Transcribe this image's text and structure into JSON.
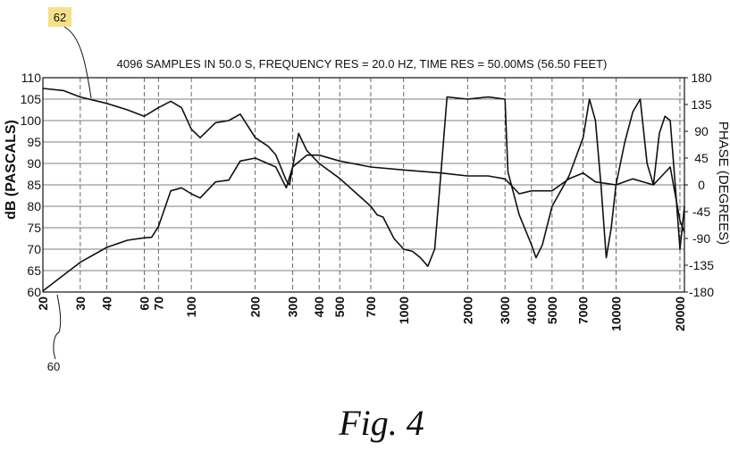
{
  "chart_data": {
    "type": "line",
    "title": "4096 SAMPLES IN 50.0 S, FREQUENCY RES = 20.0 HZ, TIME RES = 50.00MS (56.50 FEET)",
    "ylabel": "dB (PASCALS)",
    "y2label": "PHASE (DEGREES)",
    "caption": "Fig. 4",
    "annotations": [
      "62",
      "60"
    ],
    "xscale": "log",
    "xlim": [
      20,
      21000
    ],
    "xticks": [
      20,
      30,
      40,
      60,
      70,
      100,
      200,
      300,
      400,
      500,
      700,
      1000,
      2000,
      3000,
      4000,
      5000,
      7000,
      10000,
      20000
    ],
    "ylim": [
      60,
      110
    ],
    "yticks": [
      60,
      65,
      70,
      75,
      80,
      85,
      90,
      95,
      100,
      105,
      110
    ],
    "y2lim": [
      -180,
      180
    ],
    "y2ticks": [
      -180,
      -135,
      -90,
      -45,
      0,
      45,
      90,
      135,
      180
    ],
    "grid": true,
    "series": [
      {
        "color": "#111111",
        "x": [
          20,
          25,
          30,
          40,
          50,
          60,
          70,
          80,
          90,
          100,
          110,
          130,
          150,
          170,
          200,
          230,
          250,
          280,
          290,
          320,
          350,
          400,
          500,
          600,
          700,
          750,
          800,
          900,
          1000,
          1100,
          1200,
          1300,
          1400,
          1500,
          1600,
          2000,
          2500,
          3000,
          3100,
          3500,
          4000,
          4200,
          4500,
          5000,
          6000,
          7000,
          7500,
          8000,
          8500,
          9000,
          9500,
          10000,
          11000,
          12000,
          13000,
          14000,
          15000,
          16000,
          17000,
          18000,
          19000,
          20000,
          21000
        ],
        "values": [
          107.5,
          107,
          105.5,
          104,
          102.5,
          101,
          103,
          104.5,
          103,
          98,
          96,
          99.5,
          100,
          101.5,
          96,
          94,
          92,
          86,
          85,
          97,
          93,
          90,
          86.5,
          83,
          80,
          78,
          77.5,
          72.5,
          70,
          69.5,
          68,
          66,
          70,
          88,
          105.5,
          105,
          105.5,
          105,
          88,
          78,
          71,
          68,
          71,
          80,
          87,
          96,
          105,
          100,
          85,
          68,
          75,
          85,
          95,
          102,
          105,
          90,
          85,
          97,
          101,
          100,
          85,
          70,
          80
        ]
      },
      {
        "color": "#111111",
        "axis": "y2",
        "x": [
          20,
          30,
          40,
          50,
          60,
          65,
          70,
          80,
          90,
          100,
          110,
          130,
          150,
          170,
          200,
          250,
          280,
          300,
          350,
          400,
          500,
          700,
          1000,
          1500,
          2000,
          2500,
          3000,
          3500,
          4000,
          5000,
          6000,
          7000,
          8000,
          10000,
          12000,
          15000,
          18000,
          20000,
          21000
        ],
        "values": [
          -178,
          -130,
          -105,
          -93,
          -89,
          -88,
          -70,
          -10,
          -5,
          -15,
          -22,
          5,
          8,
          40,
          45,
          30,
          -5,
          30,
          50,
          50,
          40,
          30,
          25,
          20,
          15,
          15,
          10,
          -15,
          -10,
          -10,
          10,
          20,
          5,
          0,
          10,
          0,
          30,
          -60,
          -80
        ]
      }
    ]
  }
}
